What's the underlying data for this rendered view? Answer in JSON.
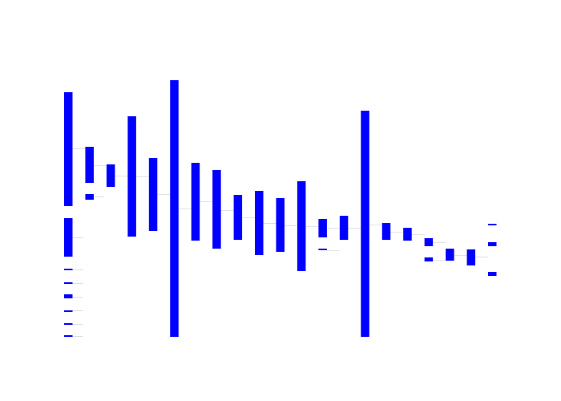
{
  "chart_data": {
    "type": "bar",
    "subtype": "waterfall",
    "title": "",
    "xlabel": "",
    "ylabel": "",
    "grid": false,
    "legend": false,
    "colors": {
      "bar": "#0000ff",
      "connector": "#c8c8c8"
    },
    "ylim": [
      0,
      320
    ],
    "bars": [
      {
        "x": 0,
        "base": 163,
        "value": 142
      },
      {
        "x": 0,
        "base": 100,
        "value": 48
      },
      {
        "x": 0,
        "base": 83,
        "value": 2
      },
      {
        "x": 0,
        "base": 66,
        "value": 2
      },
      {
        "x": 0,
        "base": 48,
        "value": 5
      },
      {
        "x": 0,
        "base": 31,
        "value": 2
      },
      {
        "x": 0,
        "base": 15,
        "value": 2
      },
      {
        "x": 0,
        "base": 0,
        "value": 2
      },
      {
        "x": 1,
        "base": 192,
        "value": 45
      },
      {
        "x": 1,
        "base": 171,
        "value": 7
      },
      {
        "x": 2,
        "base": 187,
        "value": 28
      },
      {
        "x": 3,
        "base": 125,
        "value": 150
      },
      {
        "x": 4,
        "base": 132,
        "value": 91
      },
      {
        "x": 5,
        "base": 0,
        "value": 320
      },
      {
        "x": 6,
        "base": 120,
        "value": 97
      },
      {
        "x": 7,
        "base": 110,
        "value": 98
      },
      {
        "x": 8,
        "base": 121,
        "value": 56
      },
      {
        "x": 9,
        "base": 102,
        "value": 80
      },
      {
        "x": 10,
        "base": 106,
        "value": 67
      },
      {
        "x": 11,
        "base": 82,
        "value": 112
      },
      {
        "x": 12,
        "base": 124,
        "value": 23
      },
      {
        "x": 12,
        "base": 108,
        "value": 2
      },
      {
        "x": 13,
        "base": 121,
        "value": 30
      },
      {
        "x": 14,
        "base": 0,
        "value": 282
      },
      {
        "x": 15,
        "base": 121,
        "value": 21
      },
      {
        "x": 16,
        "base": 120,
        "value": 16
      },
      {
        "x": 17,
        "base": 113,
        "value": 10
      },
      {
        "x": 17,
        "base": 94,
        "value": 5
      },
      {
        "x": 18,
        "base": 95,
        "value": 15
      },
      {
        "x": 19,
        "base": 89,
        "value": 20
      },
      {
        "x": 20,
        "base": 139,
        "value": 2
      },
      {
        "x": 20,
        "base": 113,
        "value": 5
      },
      {
        "x": 20,
        "base": 76,
        "value": 5
      }
    ],
    "connectors": [
      {
        "from": 0,
        "to": 1,
        "y": 235
      },
      {
        "from": 0,
        "to": 0.5,
        "y": 124
      },
      {
        "from": 0,
        "to": 0.5,
        "y": 84
      },
      {
        "from": 0,
        "to": 0.5,
        "y": 67
      },
      {
        "from": 0,
        "to": 0.5,
        "y": 50
      },
      {
        "from": 0,
        "to": 0.5,
        "y": 33
      },
      {
        "from": 0,
        "to": 0.5,
        "y": 16
      },
      {
        "from": 0,
        "to": 0.5,
        "y": 1
      },
      {
        "from": 1,
        "to": 1.5,
        "y": 175
      },
      {
        "from": 1,
        "to": 2,
        "y": 214
      },
      {
        "from": 2,
        "to": 3,
        "y": 201
      },
      {
        "from": 3,
        "to": 4,
        "y": 200
      },
      {
        "from": 4,
        "to": 5,
        "y": 178
      },
      {
        "from": 5,
        "to": 6,
        "y": 160
      },
      {
        "from": 6,
        "to": 7,
        "y": 169
      },
      {
        "from": 7,
        "to": 8,
        "y": 158
      },
      {
        "from": 8,
        "to": 9,
        "y": 149
      },
      {
        "from": 9,
        "to": 10,
        "y": 142
      },
      {
        "from": 10,
        "to": 11,
        "y": 139
      },
      {
        "from": 11,
        "to": 12,
        "y": 138
      },
      {
        "from": 12,
        "to": 13,
        "y": 136
      },
      {
        "from": 12,
        "to": 13,
        "y": 108
      },
      {
        "from": 13,
        "to": 14,
        "y": 136
      },
      {
        "from": 14,
        "to": 15,
        "y": 140
      },
      {
        "from": 15,
        "to": 16,
        "y": 131
      },
      {
        "from": 16,
        "to": 17,
        "y": 128
      },
      {
        "from": 17,
        "to": 18,
        "y": 118
      },
      {
        "from": 17,
        "to": 18,
        "y": 96
      },
      {
        "from": 18,
        "to": 19,
        "y": 102
      },
      {
        "from": 19,
        "to": 20,
        "y": 100
      },
      {
        "from": 19.6,
        "to": 20,
        "y": 140
      },
      {
        "from": 19.6,
        "to": 20,
        "y": 116
      }
    ]
  }
}
